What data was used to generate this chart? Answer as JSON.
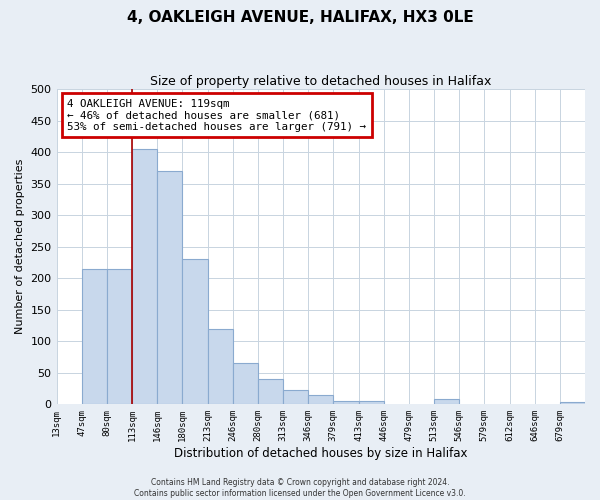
{
  "title": "4, OAKLEIGH AVENUE, HALIFAX, HX3 0LE",
  "subtitle": "Size of property relative to detached houses in Halifax",
  "xlabel": "Distribution of detached houses by size in Halifax",
  "ylabel": "Number of detached properties",
  "bar_color": "#c8d8ec",
  "bar_edge_color": "#8aaacf",
  "bin_labels": [
    "13sqm",
    "47sqm",
    "80sqm",
    "113sqm",
    "146sqm",
    "180sqm",
    "213sqm",
    "246sqm",
    "280sqm",
    "313sqm",
    "346sqm",
    "379sqm",
    "413sqm",
    "446sqm",
    "479sqm",
    "513sqm",
    "546sqm",
    "579sqm",
    "612sqm",
    "646sqm",
    "679sqm"
  ],
  "bar_heights": [
    0,
    215,
    215,
    405,
    370,
    230,
    120,
    65,
    40,
    22,
    15,
    5,
    5,
    0,
    0,
    8,
    0,
    0,
    0,
    0,
    3
  ],
  "ylim": [
    0,
    500
  ],
  "yticks": [
    0,
    50,
    100,
    150,
    200,
    250,
    300,
    350,
    400,
    450,
    500
  ],
  "property_line_x": 3,
  "annotation_title": "4 OAKLEIGH AVENUE: 119sqm",
  "annotation_line1": "← 46% of detached houses are smaller (681)",
  "annotation_line2": "53% of semi-detached houses are larger (791) →",
  "annotation_box_color": "#ffffff",
  "annotation_box_edge_color": "#cc0000",
  "property_line_color": "#aa0000",
  "footer_line1": "Contains HM Land Registry data © Crown copyright and database right 2024.",
  "footer_line2": "Contains public sector information licensed under the Open Government Licence v3.0.",
  "background_color": "#e8eef5",
  "plot_background_color": "#ffffff",
  "grid_color": "#c8d4e0",
  "title_fontsize": 11,
  "subtitle_fontsize": 9
}
